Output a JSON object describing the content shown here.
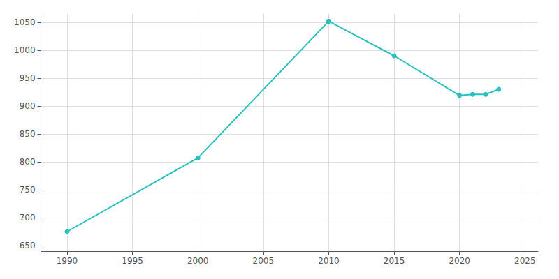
{
  "chart_data": {
    "type": "line",
    "x": [
      1990,
      2000,
      2010,
      2015,
      2020,
      2021,
      2022,
      2023
    ],
    "values": [
      675,
      807,
      1052,
      990,
      919,
      921,
      921,
      930
    ],
    "color": "#2abfbf",
    "marker": "circle",
    "xlim": [
      1988,
      2026
    ],
    "xticks": [
      1990,
      1995,
      2000,
      2005,
      2010,
      2015,
      2020,
      2025
    ],
    "ylim": [
      640,
      1065
    ],
    "yticks": [
      650,
      700,
      750,
      800,
      850,
      900,
      950,
      1000,
      1050
    ],
    "grid": true
  }
}
